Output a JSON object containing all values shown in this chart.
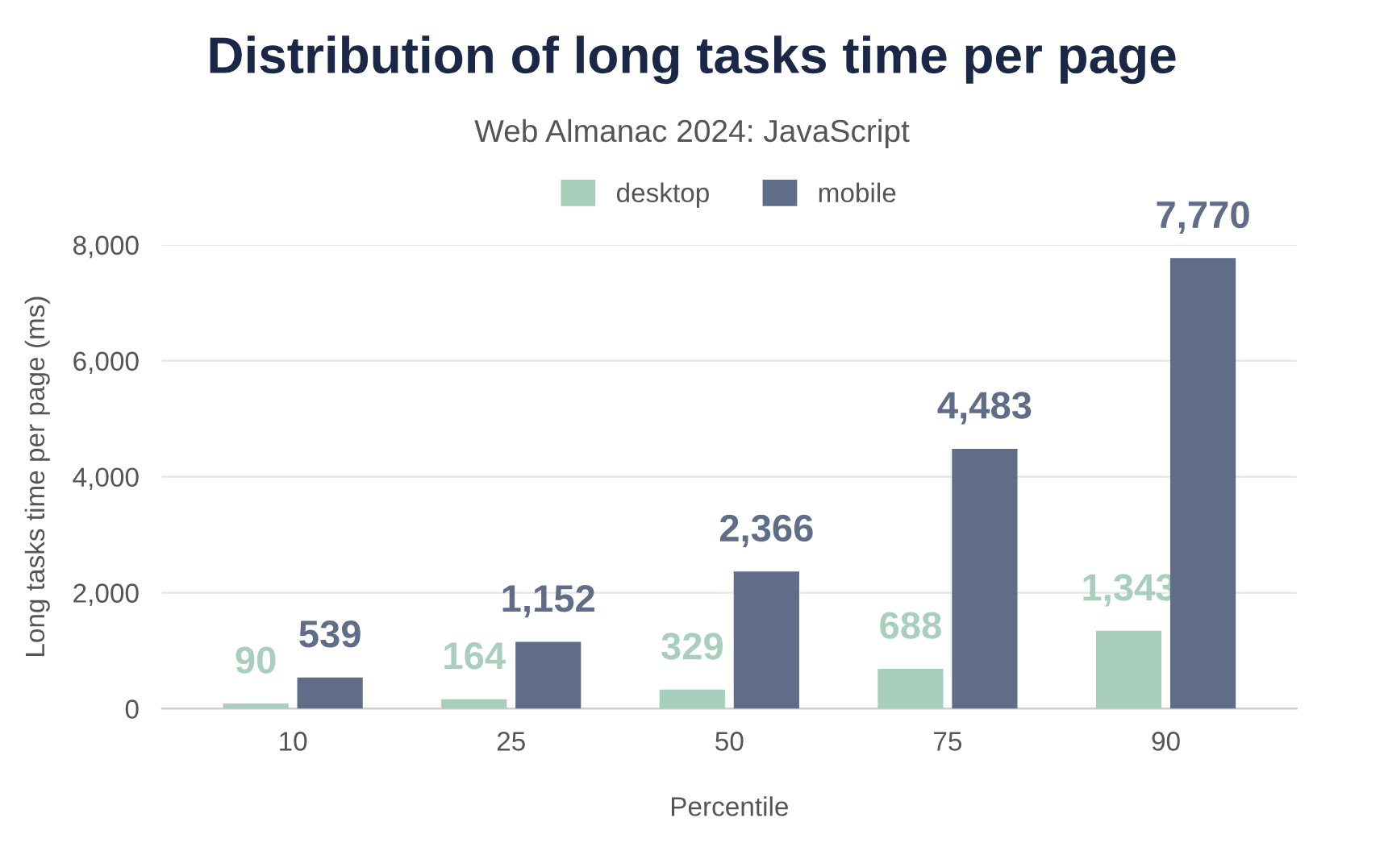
{
  "chart_data": {
    "type": "bar",
    "title": "Distribution of long tasks time per page",
    "subtitle": "Web Almanac 2024: JavaScript",
    "xlabel": "Percentile",
    "ylabel": "Long tasks time per page (ms)",
    "categories": [
      "10",
      "25",
      "50",
      "75",
      "90"
    ],
    "series": [
      {
        "name": "desktop",
        "color": "#a8cfbc",
        "values": [
          90,
          164,
          329,
          688,
          1343
        ],
        "value_labels": [
          "90",
          "164",
          "329",
          "688",
          "1,343"
        ]
      },
      {
        "name": "mobile",
        "color": "#5f6d89",
        "values": [
          539,
          1152,
          2366,
          4483,
          7770
        ],
        "value_labels": [
          "539",
          "1,152",
          "2,366",
          "4,483",
          "7,770"
        ]
      }
    ],
    "ylim": [
      0,
      8000
    ],
    "yticks": [
      {
        "value": 0,
        "label": "0"
      },
      {
        "value": 2000,
        "label": "2,000"
      },
      {
        "value": 4000,
        "label": "4,000"
      },
      {
        "value": 6000,
        "label": "6,000"
      },
      {
        "value": 8000,
        "label": "8,000"
      }
    ],
    "grid": "y",
    "legend": "top"
  }
}
